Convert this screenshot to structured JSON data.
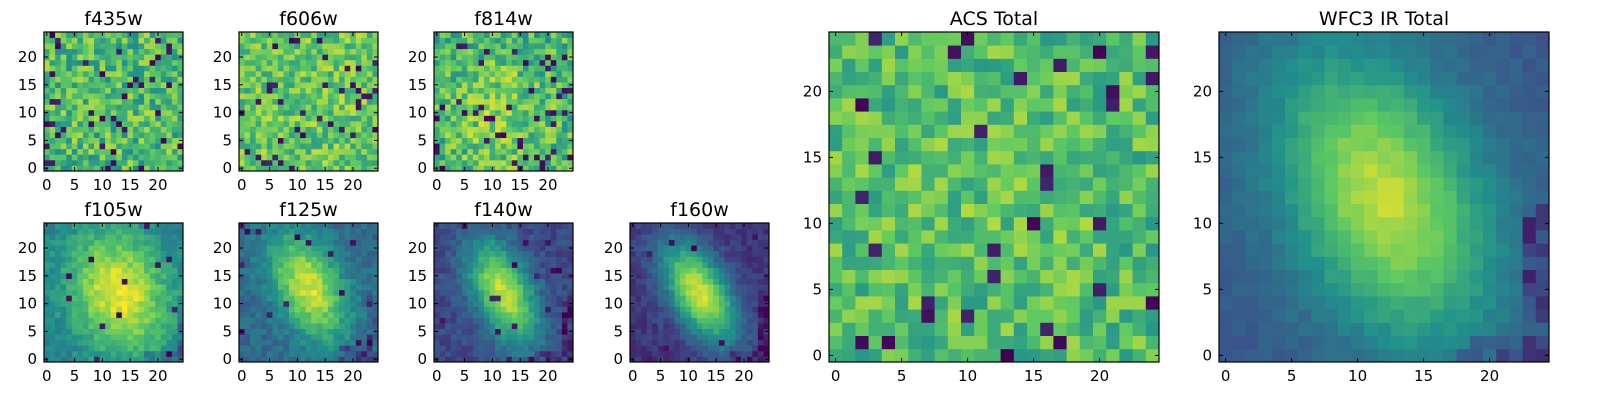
{
  "figure": {
    "colormap": "viridis",
    "colormap_stops": [
      "#440154",
      "#3b528b",
      "#21918c",
      "#5ec962",
      "#fde725"
    ],
    "axis_color": "#000000",
    "background": "#ffffff"
  },
  "chart_data": [
    {
      "type": "heatmap",
      "title": "f435w",
      "grid_size": 25,
      "xlim": [
        0,
        24
      ],
      "ylim": [
        0,
        24
      ],
      "xticks": [
        0,
        5,
        10,
        15,
        20
      ],
      "yticks": [
        0,
        5,
        10,
        15,
        20
      ],
      "pattern": "noise",
      "seed": 11,
      "center": [
        12,
        12
      ],
      "sigma_x": 6,
      "sigma_y": 6,
      "angle": 0,
      "peak": 0.0,
      "base": 0.68,
      "noise": 0.42,
      "dark_fraction": 0.06
    },
    {
      "type": "heatmap",
      "title": "f606w",
      "grid_size": 25,
      "xlim": [
        0,
        24
      ],
      "ylim": [
        0,
        24
      ],
      "xticks": [
        0,
        5,
        10,
        15,
        20
      ],
      "yticks": [
        0,
        5,
        10,
        15,
        20
      ],
      "pattern": "noise",
      "seed": 23,
      "center": [
        12,
        12
      ],
      "sigma_x": 6,
      "sigma_y": 6,
      "angle": 0,
      "peak": 0.0,
      "base": 0.74,
      "noise": 0.36,
      "dark_fraction": 0.05
    },
    {
      "type": "heatmap",
      "title": "f814w",
      "grid_size": 25,
      "xlim": [
        0,
        24
      ],
      "ylim": [
        0,
        24
      ],
      "xticks": [
        0,
        5,
        10,
        15,
        20
      ],
      "yticks": [
        0,
        5,
        10,
        15,
        20
      ],
      "pattern": "noise",
      "seed": 37,
      "center": [
        11,
        10
      ],
      "sigma_x": 7,
      "sigma_y": 7,
      "angle": 0,
      "peak": 0.12,
      "base": 0.66,
      "noise": 0.4,
      "dark_fraction": 0.07
    },
    {
      "type": "heatmap",
      "title": "f105w",
      "grid_size": 25,
      "xlim": [
        0,
        24
      ],
      "ylim": [
        0,
        24
      ],
      "xticks": [
        0,
        5,
        10,
        15,
        20
      ],
      "yticks": [
        0,
        5,
        10,
        15,
        20
      ],
      "pattern": "galaxy",
      "seed": 41,
      "center": [
        13,
        12
      ],
      "sigma_x": 6,
      "sigma_y": 8,
      "angle": 20,
      "peak": 0.55,
      "base": 0.42,
      "noise": 0.16,
      "dark_fraction": 0.02
    },
    {
      "type": "heatmap",
      "title": "f125w",
      "grid_size": 25,
      "xlim": [
        0,
        24
      ],
      "ylim": [
        0,
        24
      ],
      "xticks": [
        0,
        5,
        10,
        15,
        20
      ],
      "yticks": [
        0,
        5,
        10,
        15,
        20
      ],
      "pattern": "galaxy",
      "seed": 53,
      "center": [
        12,
        13
      ],
      "sigma_x": 4,
      "sigma_y": 7,
      "angle": 25,
      "peak": 0.6,
      "base": 0.34,
      "noise": 0.16,
      "dark_fraction": 0.03
    },
    {
      "type": "heatmap",
      "title": "f140w",
      "grid_size": 25,
      "xlim": [
        0,
        24
      ],
      "ylim": [
        0,
        24
      ],
      "xticks": [
        0,
        5,
        10,
        15,
        20
      ],
      "yticks": [
        0,
        5,
        10,
        15,
        20
      ],
      "pattern": "galaxy",
      "seed": 67,
      "center": [
        12,
        12
      ],
      "sigma_x": 3.5,
      "sigma_y": 7,
      "angle": 25,
      "peak": 0.7,
      "base": 0.22,
      "noise": 0.13,
      "dark_fraction": 0.02
    },
    {
      "type": "heatmap",
      "title": "f160w",
      "grid_size": 25,
      "xlim": [
        0,
        24
      ],
      "ylim": [
        0,
        24
      ],
      "xticks": [
        0,
        5,
        10,
        15,
        20
      ],
      "yticks": [
        0,
        5,
        10,
        15,
        20
      ],
      "pattern": "galaxy",
      "seed": 79,
      "center": [
        12,
        12
      ],
      "sigma_x": 3.5,
      "sigma_y": 7,
      "angle": 30,
      "peak": 0.78,
      "base": 0.16,
      "noise": 0.11,
      "dark_fraction": 0.02
    },
    {
      "type": "heatmap",
      "title": "ACS Total",
      "grid_size": 25,
      "xlim": [
        0,
        24
      ],
      "ylim": [
        0,
        24
      ],
      "xticks": [
        0,
        5,
        10,
        15,
        20
      ],
      "yticks": [
        0,
        5,
        10,
        15,
        20
      ],
      "pattern": "noise",
      "seed": 97,
      "center": [
        12,
        12
      ],
      "sigma_x": 7,
      "sigma_y": 7,
      "angle": 0,
      "peak": 0.05,
      "base": 0.68,
      "noise": 0.34,
      "dark_fraction": 0.05
    },
    {
      "type": "heatmap",
      "title": "WFC3 IR Total",
      "grid_size": 25,
      "xlim": [
        0,
        24
      ],
      "ylim": [
        0,
        24
      ],
      "xticks": [
        0,
        5,
        10,
        15,
        20
      ],
      "yticks": [
        0,
        5,
        10,
        15,
        20
      ],
      "pattern": "galaxy",
      "seed": 131,
      "center": [
        12,
        12
      ],
      "sigma_x": 5,
      "sigma_y": 8,
      "angle": 25,
      "peak": 0.62,
      "base": 0.28,
      "noise": 0.07,
      "dark_fraction": 0.0
    }
  ]
}
